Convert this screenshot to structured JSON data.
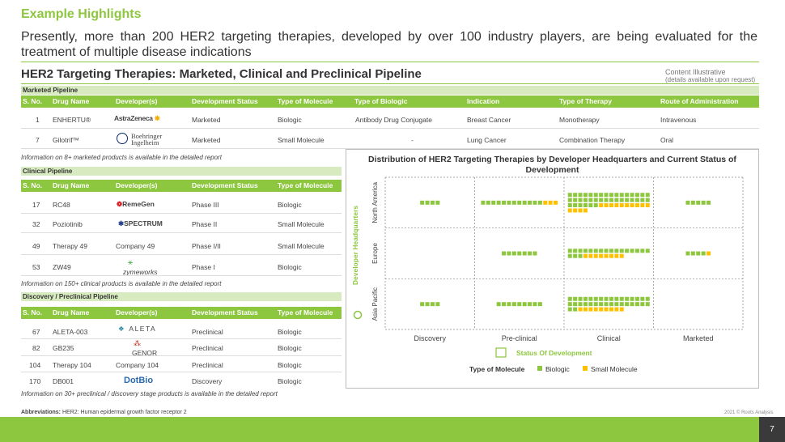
{
  "page": {
    "section_title": "Example Highlights",
    "subtitle": "Presently, more than 200 HER2 targeting therapies, developed by over 100 industry players, are being evaluated for the treatment of multiple disease indications",
    "main_title": "HER2 Targeting Therapies: Marketed, Clinical and Preclinical Pipeline",
    "illustrative_label": "Content Illustrative",
    "illustrative_note": "(details available upon request)",
    "page_number": "7",
    "abbreviations_label": "Abbreviations:",
    "abbreviations_text": "HER2: Human epidermal growth factor receptor 2",
    "copyright": "2021 © Roots Analysis"
  },
  "marketed": {
    "label": "Marketed Pipeline",
    "headers": [
      "S. No.",
      "Drug Name",
      "Developer(s)",
      "Development Status",
      "Type of Molecule",
      "Type of Biologic",
      "Indication",
      "Type of Therapy",
      "Route of Administration"
    ],
    "rows": [
      {
        "sno": "1",
        "drug": "ENHERTU®",
        "developer": "AstraZeneca",
        "status": "Marketed",
        "molecule": "Biologic",
        "biologic": "Antibody Drug Conjugate",
        "indication": "Breast Cancer",
        "therapy": "Monotherapy",
        "route": "Intravenous"
      },
      {
        "sno": "7",
        "drug": "Gilotrif™",
        "developer": "Boehringer Ingelheim",
        "status": "Marketed",
        "molecule": "Small Molecule",
        "biologic": "-",
        "indication": "Lung Cancer",
        "therapy": "Combination Therapy",
        "route": "Oral"
      }
    ],
    "note": "Information on 8+ marketed products is available in the detailed report"
  },
  "clinical": {
    "label": "Clinical Pipeline",
    "headers": [
      "S. No.",
      "Drug Name",
      "Developer(s)",
      "Development Status",
      "Type of Molecule"
    ],
    "rows": [
      {
        "sno": "17",
        "drug": "RC48",
        "developer": "RemeGen",
        "status": "Phase III",
        "molecule": "Biologic"
      },
      {
        "sno": "32",
        "drug": "Poziotinib",
        "developer": "SPECTRUM",
        "status": "Phase II",
        "molecule": "Small Molecule"
      },
      {
        "sno": "49",
        "drug": "Therapy 49",
        "developer": "Company 49",
        "status": "Phase I/II",
        "molecule": "Small Molecule"
      },
      {
        "sno": "53",
        "drug": "ZW49",
        "developer": "zymeworks",
        "status": "Phase I",
        "molecule": "Biologic"
      }
    ],
    "note": "Information on 150+ clinical products is available in the detailed report"
  },
  "discovery": {
    "label": "Discovery / Preclinical Pipeline",
    "headers": [
      "S. No.",
      "Drug Name",
      "Developer(s)",
      "Development Status",
      "Type of Molecule"
    ],
    "rows": [
      {
        "sno": "67",
        "drug": "ALETA-003",
        "developer": "ALETA",
        "status": "Preclinical",
        "molecule": "Biologic"
      },
      {
        "sno": "82",
        "drug": "GB235",
        "developer": "GENOR",
        "status": "Preclinical",
        "molecule": "Biologic"
      },
      {
        "sno": "104",
        "drug": "Therapy 104",
        "developer": "Company 104",
        "status": "Preclinical",
        "molecule": "Biologic"
      },
      {
        "sno": "170",
        "drug": "DB001",
        "developer": "DotBio",
        "status": "Discovery",
        "molecule": "Biologic"
      }
    ],
    "note": "Information on 30+ preclinical / discovery stage products is available in the detailed report"
  },
  "colors": {
    "accent": "#8dc63f",
    "small_molecule": "#ffc000",
    "biologic": "#8dc63f"
  },
  "chart_data": {
    "type": "scatter",
    "title": "Distribution of HER2 Targeting Therapies by Developer Headquarters and Current Status of Development",
    "xlabel": "Status Of Development",
    "ylabel": "Developer Headquarters",
    "x_categories": [
      "Discovery",
      "Pre-clinical",
      "Clinical",
      "Marketed"
    ],
    "y_categories": [
      "North America",
      "Europe",
      "Asia Pacific"
    ],
    "legend_title": "Type of Molecule",
    "series": [
      {
        "name": "Biologic",
        "counts": [
          [
            4,
            12,
            38,
            5
          ],
          [
            0,
            7,
            19,
            4
          ],
          [
            4,
            9,
            34,
            0
          ]
        ]
      },
      {
        "name": "Small Molecule",
        "counts": [
          [
            0,
            3,
            14,
            0
          ],
          [
            0,
            0,
            8,
            1
          ],
          [
            0,
            0,
            9,
            0
          ]
        ]
      }
    ],
    "grid": true,
    "legend_position": "bottom"
  }
}
